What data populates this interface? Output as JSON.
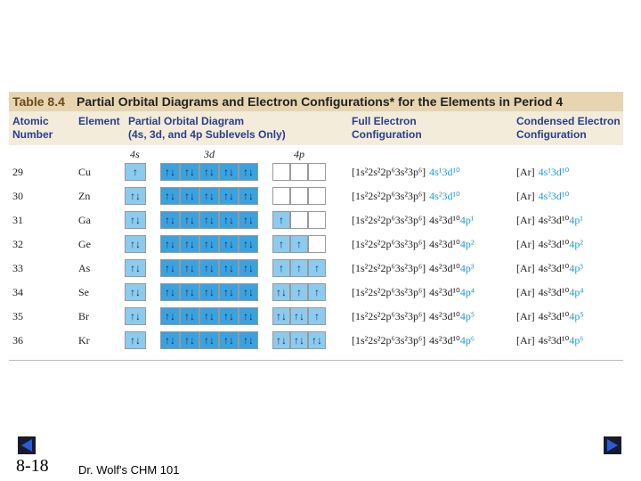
{
  "table": {
    "label": "Table 8.4",
    "title": "Partial Orbital Diagrams and Electron Configurations* for the Elements in Period 4",
    "headers": [
      [
        "Atomic",
        "Number"
      ],
      [
        "Element"
      ],
      [
        "Partial Orbital Diagram",
        "(4s, 3d, and 4p Sublevels Only)"
      ],
      [
        "Full Electron",
        "Configuration"
      ],
      [
        "Condensed Electron",
        "Configuration"
      ]
    ],
    "sublevels": [
      "4s",
      "3d",
      "4p"
    ],
    "rows": [
      {
        "number": "29",
        "element": "Cu",
        "s4": "↑",
        "d3": [
          "↑↓",
          "↑↓",
          "↑↓",
          "↑↓",
          "↑↓"
        ],
        "p4": [],
        "full_core": "[1s²2s²2p⁶3s²3p⁶]",
        "condensed_core": "[Ar]",
        "parts": [
          {
            "text": "4s¹3d¹⁰",
            "highlight": true
          }
        ]
      },
      {
        "number": "30",
        "element": "Zn",
        "s4": "↑↓",
        "d3": [
          "↑↓",
          "↑↓",
          "↑↓",
          "↑↓",
          "↑↓"
        ],
        "p4": [],
        "full_core": "[1s²2s²2p⁶3s²3p⁶]",
        "condensed_core": "[Ar]",
        "parts": [
          {
            "text": "4s²3d¹⁰",
            "highlight": true
          }
        ]
      },
      {
        "number": "31",
        "element": "Ga",
        "s4": "↑↓",
        "d3": [
          "↑↓",
          "↑↓",
          "↑↓",
          "↑↓",
          "↑↓"
        ],
        "p4": [
          "↑"
        ],
        "full_core": "[1s²2s²2p⁶3s²3p⁶]",
        "condensed_core": "[Ar]",
        "parts": [
          {
            "text": "4s²3d¹⁰",
            "highlight": false
          },
          {
            "text": "4p¹",
            "highlight": true
          }
        ]
      },
      {
        "number": "32",
        "element": "Ge",
        "s4": "↑↓",
        "d3": [
          "↑↓",
          "↑↓",
          "↑↓",
          "↑↓",
          "↑↓"
        ],
        "p4": [
          "↑",
          "↑"
        ],
        "full_core": "[1s²2s²2p⁶3s²3p⁶]",
        "condensed_core": "[Ar]",
        "parts": [
          {
            "text": "4s²3d¹⁰",
            "highlight": false
          },
          {
            "text": "4p²",
            "highlight": true
          }
        ]
      },
      {
        "number": "33",
        "element": "As",
        "s4": "↑↓",
        "d3": [
          "↑↓",
          "↑↓",
          "↑↓",
          "↑↓",
          "↑↓"
        ],
        "p4": [
          "↑",
          "↑",
          "↑"
        ],
        "full_core": "[1s²2s²2p⁶3s²3p⁶]",
        "condensed_core": "[Ar]",
        "parts": [
          {
            "text": "4s²3d¹⁰",
            "highlight": false
          },
          {
            "text": "4p³",
            "highlight": true
          }
        ]
      },
      {
        "number": "34",
        "element": "Se",
        "s4": "↑↓",
        "d3": [
          "↑↓",
          "↑↓",
          "↑↓",
          "↑↓",
          "↑↓"
        ],
        "p4": [
          "↑↓",
          "↑",
          "↑"
        ],
        "full_core": "[1s²2s²2p⁶3s²3p⁶]",
        "condensed_core": "[Ar]",
        "parts": [
          {
            "text": "4s²3d¹⁰",
            "highlight": false
          },
          {
            "text": "4p⁴",
            "highlight": true
          }
        ]
      },
      {
        "number": "35",
        "element": "Br",
        "s4": "↑↓",
        "d3": [
          "↑↓",
          "↑↓",
          "↑↓",
          "↑↓",
          "↑↓"
        ],
        "p4": [
          "↑↓",
          "↑↓",
          "↑"
        ],
        "full_core": "[1s²2s²2p⁶3s²3p⁶]",
        "condensed_core": "[Ar]",
        "parts": [
          {
            "text": "4s²3d¹⁰",
            "highlight": false
          },
          {
            "text": "4p⁵",
            "highlight": true
          }
        ]
      },
      {
        "number": "36",
        "element": "Kr",
        "s4": "↑↓",
        "d3": [
          "↑↓",
          "↑↓",
          "↑↓",
          "↑↓",
          "↑↓"
        ],
        "p4": [
          "↑↓",
          "↑↓",
          "↑↓"
        ],
        "full_core": "[1s²2s²2p⁶3s²3p⁶]",
        "condensed_core": "[Ar]",
        "parts": [
          {
            "text": "4s²3d¹⁰",
            "highlight": false
          },
          {
            "text": "4p⁶",
            "highlight": true
          }
        ]
      }
    ]
  },
  "footer": {
    "slide": "8-18",
    "course": "Dr. Wolf's CHM 101"
  }
}
